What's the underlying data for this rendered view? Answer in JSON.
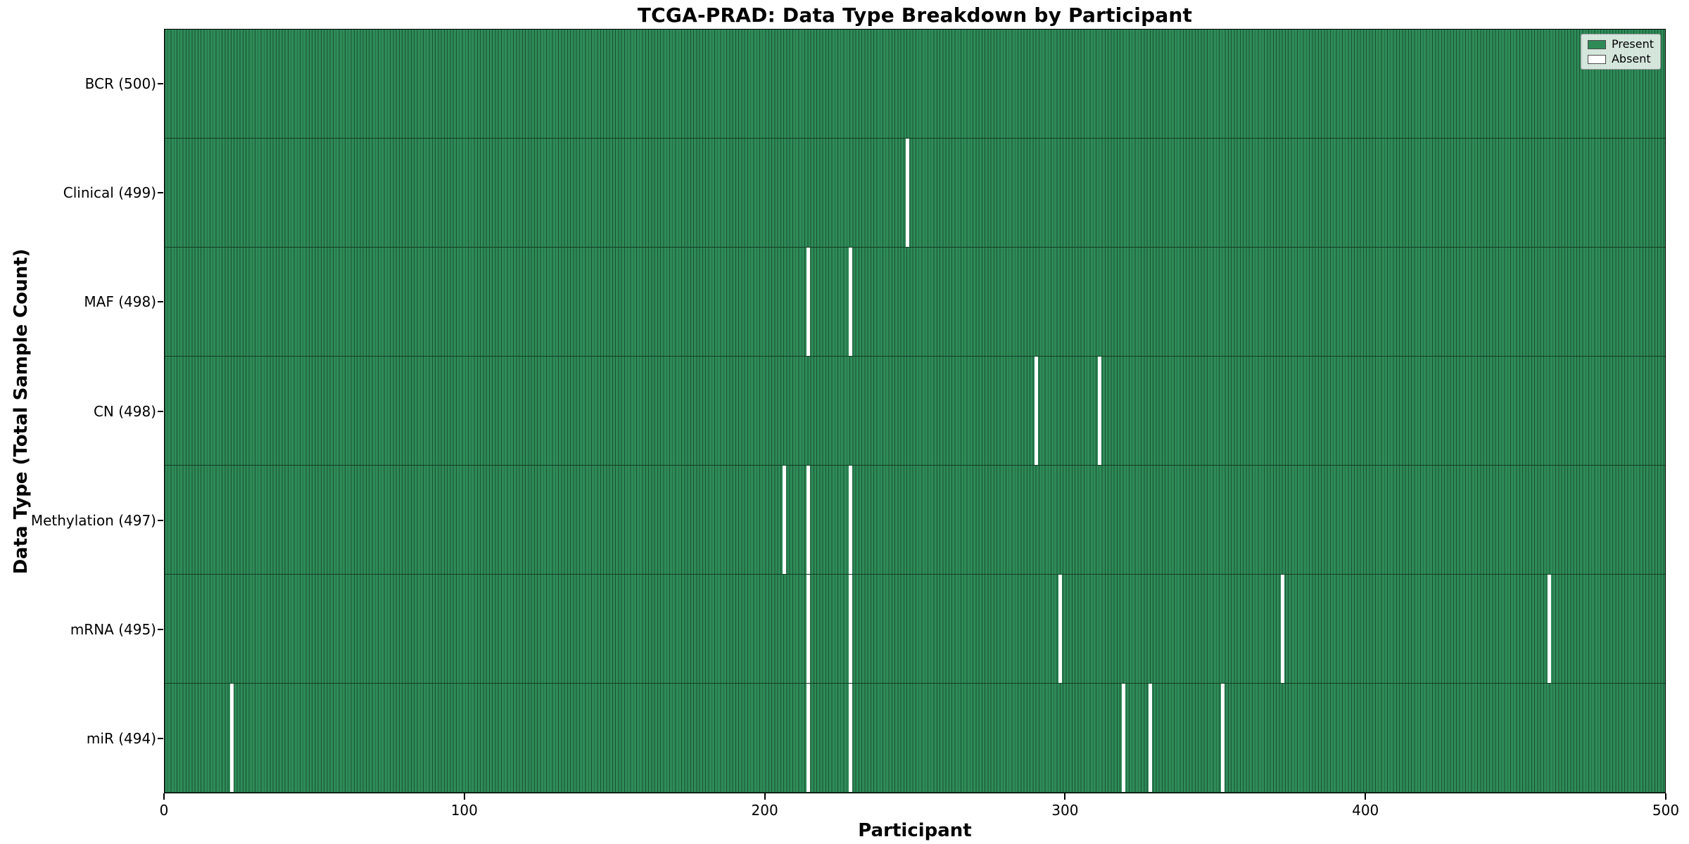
{
  "title": "TCGA-PRAD: Data Type Breakdown by Participant",
  "chart_data": {
    "type": "heatmap",
    "title": "TCGA-PRAD: Data Type Breakdown by Participant",
    "xlabel": "Participant",
    "ylabel": "Data Type (Total Sample Count)",
    "xlim": [
      0,
      500
    ],
    "n_participants": 500,
    "x_ticks": [
      0,
      100,
      200,
      300,
      400,
      500
    ],
    "grid": false,
    "rows": [
      {
        "label": "BCR (500)",
        "data_type": "BCR",
        "total": 500,
        "absent_participants": []
      },
      {
        "label": "Clinical (499)",
        "data_type": "Clinical",
        "total": 499,
        "absent_participants": [
          247
        ]
      },
      {
        "label": "MAF (498)",
        "data_type": "MAF",
        "total": 498,
        "absent_participants": [
          214,
          228
        ]
      },
      {
        "label": "CN (498)",
        "data_type": "CN",
        "total": 498,
        "absent_participants": [
          290,
          311
        ]
      },
      {
        "label": "Methylation (497)",
        "data_type": "Methylation",
        "total": 497,
        "absent_participants": [
          206,
          214,
          228
        ]
      },
      {
        "label": "mRNA (495)",
        "data_type": "mRNA",
        "total": 495,
        "absent_participants": [
          214,
          228,
          298,
          372,
          461
        ]
      },
      {
        "label": "miR (494)",
        "data_type": "miR",
        "total": 494,
        "absent_participants": [
          22,
          214,
          228,
          319,
          328,
          352
        ]
      }
    ],
    "legend": {
      "position": "upper right",
      "entries": [
        {
          "label": "Present",
          "color": "#2e8b57"
        },
        {
          "label": "Absent",
          "color": "#ffffff"
        }
      ]
    },
    "colors": {
      "present": "#2e8b57",
      "bar_edge": "#1b5134",
      "absent": "#ffffff",
      "row_divider": "#143c22"
    }
  }
}
